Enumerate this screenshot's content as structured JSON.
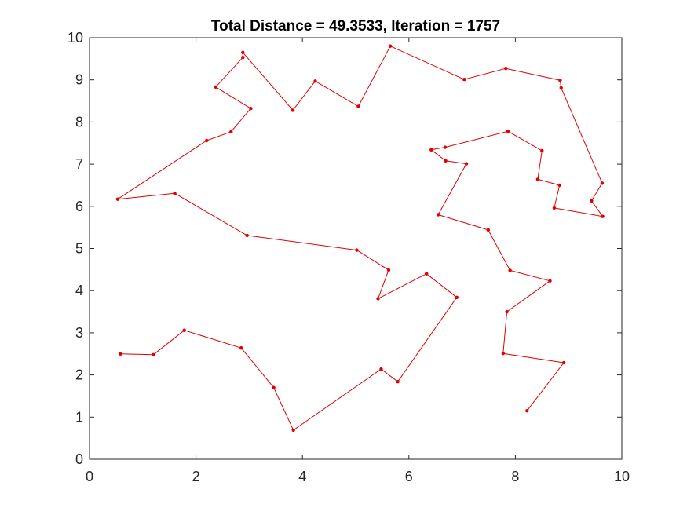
{
  "chart_data": {
    "type": "line",
    "title": "Total Distance = 49.3533, Iteration = 1757",
    "xlabel": "",
    "ylabel": "",
    "xlim": [
      0,
      10
    ],
    "ylim": [
      0,
      10
    ],
    "xticks": [
      0,
      2,
      4,
      6,
      8,
      10
    ],
    "yticks": [
      0,
      1,
      2,
      3,
      4,
      5,
      6,
      7,
      8,
      9,
      10
    ],
    "grid": false,
    "legend": "none",
    "line_color": "#e00000",
    "marker": "dot",
    "series": [
      {
        "points": [
          [
            0.58,
            2.5
          ],
          [
            1.2,
            2.48
          ],
          [
            1.78,
            3.06
          ],
          [
            2.85,
            2.64
          ],
          [
            3.46,
            1.7
          ],
          [
            3.83,
            0.69
          ],
          [
            5.48,
            2.14
          ],
          [
            5.79,
            1.84
          ],
          [
            6.9,
            3.84
          ],
          [
            6.33,
            4.4
          ],
          [
            5.42,
            3.81
          ],
          [
            5.62,
            4.49
          ],
          [
            5.02,
            4.96
          ],
          [
            2.96,
            5.31
          ],
          [
            1.6,
            6.31
          ],
          [
            0.53,
            6.17
          ],
          [
            2.2,
            7.56
          ],
          [
            2.66,
            7.77
          ],
          [
            3.03,
            8.32
          ],
          [
            2.37,
            8.83
          ],
          [
            2.88,
            9.53
          ],
          [
            2.88,
            9.65
          ],
          [
            3.82,
            8.28
          ],
          [
            4.24,
            8.97
          ],
          [
            5.05,
            8.37
          ],
          [
            5.65,
            9.8
          ],
          [
            7.04,
            9.01
          ],
          [
            7.82,
            9.27
          ],
          [
            8.84,
            8.99
          ],
          [
            8.86,
            8.81
          ],
          [
            9.63,
            6.55
          ],
          [
            9.43,
            6.13
          ],
          [
            9.64,
            5.76
          ],
          [
            8.73,
            5.96
          ],
          [
            8.83,
            6.5
          ],
          [
            8.42,
            6.64
          ],
          [
            8.5,
            7.32
          ],
          [
            7.86,
            7.78
          ],
          [
            6.68,
            7.4
          ],
          [
            6.42,
            7.34
          ],
          [
            6.69,
            7.08
          ],
          [
            7.08,
            7.01
          ],
          [
            6.55,
            5.8
          ],
          [
            7.49,
            5.44
          ],
          [
            7.9,
            4.48
          ],
          [
            8.65,
            4.23
          ],
          [
            7.84,
            3.5
          ],
          [
            7.77,
            2.51
          ],
          [
            8.91,
            2.29
          ],
          [
            8.22,
            1.15
          ]
        ]
      }
    ]
  }
}
